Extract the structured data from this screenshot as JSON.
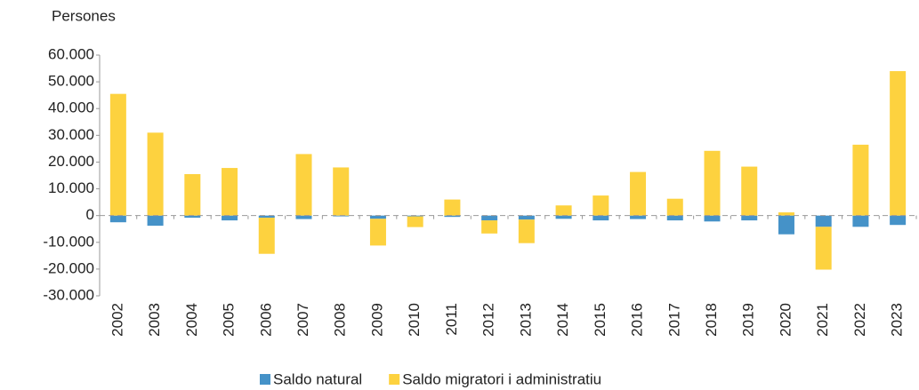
{
  "chart_data": {
    "type": "bar",
    "stacked": true,
    "y_axis_label": "Persones",
    "categories": [
      "2002",
      "2003",
      "2004",
      "2005",
      "2006",
      "2007",
      "2008",
      "2009",
      "2010",
      "2011",
      "2012",
      "2013",
      "2014",
      "2015",
      "2016",
      "2017",
      "2018",
      "2019",
      "2020",
      "2021",
      "2022",
      "2023"
    ],
    "series": [
      {
        "name": "Saldo natural",
        "color": "#4592c8",
        "values": [
          -2500,
          -3800,
          -800,
          -1800,
          -800,
          -1300,
          -300,
          -1200,
          -300,
          -500,
          -1800,
          -1500,
          -1200,
          -1800,
          -1300,
          -1800,
          -2200,
          -1800,
          -7000,
          -4200,
          -4200,
          -3500
        ]
      },
      {
        "name": "Saldo migratori i administratiu",
        "color": "#fdd23f",
        "values": [
          45500,
          31000,
          15500,
          17800,
          -13500,
          23000,
          18000,
          -10000,
          -4000,
          6000,
          -4900,
          -8800,
          3800,
          7500,
          16300,
          6300,
          24200,
          18300,
          1200,
          -16000,
          26500,
          54000
        ]
      }
    ],
    "ylim": [
      -30000,
      60000
    ],
    "yticks": [
      {
        "value": -30000,
        "label": "-30.000"
      },
      {
        "value": -20000,
        "label": "-20.000"
      },
      {
        "value": -10000,
        "label": "-10.000"
      },
      0,
      {
        "value": 10000,
        "label": "10.000"
      },
      {
        "value": 20000,
        "label": "20.000"
      },
      {
        "value": 30000,
        "label": "30.000"
      },
      {
        "value": 40000,
        "label": "40.000"
      },
      {
        "value": 50000,
        "label": "50.000"
      },
      {
        "value": 60000,
        "label": "60.000"
      }
    ],
    "grid": false,
    "legend": "bottom"
  }
}
